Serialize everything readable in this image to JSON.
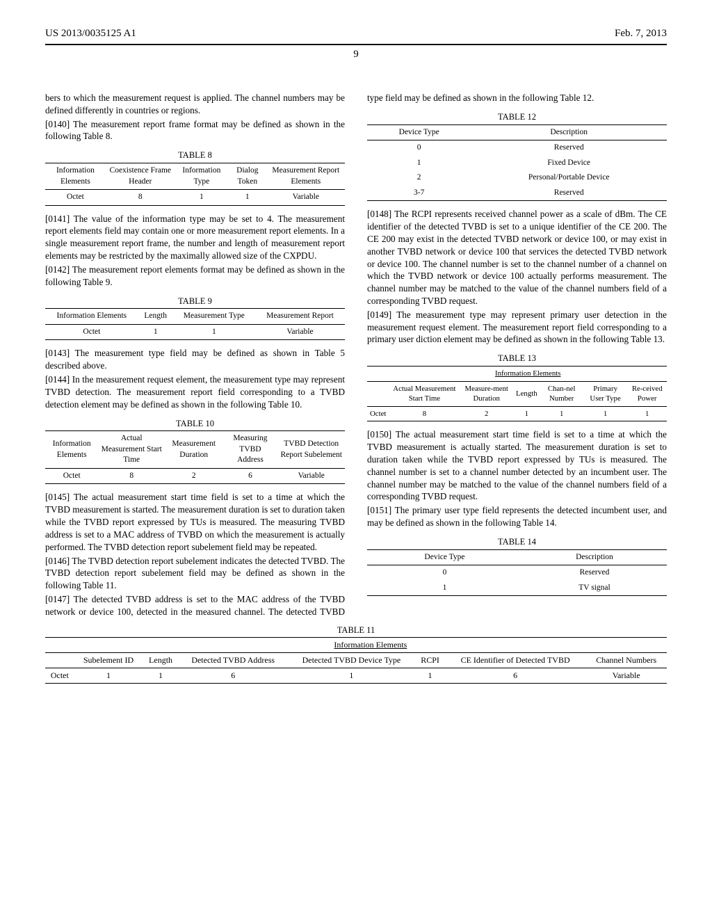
{
  "header": {
    "pub_number": "US 2013/0035125 A1",
    "date": "Feb. 7, 2013",
    "page_number": "9"
  },
  "paras": {
    "p0139_cont": "bers to which the measurement request is applied. The channel numbers may be defined differently in countries or regions.",
    "p0140_num": "[0140]",
    "p0140": "  The measurement report frame format may be defined as shown in the following Table 8.",
    "p0141_num": "[0141]",
    "p0141": "  The value of the information type may be set to 4. The measurement report elements field may contain one or more measurement report elements. In a single measurement report frame, the number and length of measurement report elements may be restricted by the maximally allowed size of the CXPDU.",
    "p0142_num": "[0142]",
    "p0142": "  The measurement report elements format may be defined as shown in the following Table 9.",
    "p0143_num": "[0143]",
    "p0143": "  The measurement type field may be defined as shown in Table 5 described above.",
    "p0144_num": "[0144]",
    "p0144": "  In the measurement request element, the measurement type may represent TVBD detection. The measurement report field corresponding to a TVBD detection element may be defined as shown in the following Table 10.",
    "p0145_num": "[0145]",
    "p0145": "  The actual measurement start time field is set to a time at which the TVBD measurement is started. The measurement duration is set to duration taken while the TVBD report expressed by TUs is measured. The measuring TVBD address is set to a MAC address of TVBD on which the measurement is actually performed. The TVBD detection report subelement field may be repeated.",
    "p0146_num": "[0146]",
    "p0146": "  The TVBD detection report subelement indicates the detected TVBD. The TVBD detection report subelement field may be defined as shown in the following Table 11.",
    "p0147_num": "[0147]",
    "p0147": "  The detected TVBD address is set to the MAC address of the TVBD network or device 100, detected in the measured channel. The detected TVBD type field may be defined as shown in the following Table 12.",
    "p0148_num": "[0148]",
    "p0148": "  The RCPI represents received channel power as a scale of dBm. The CE identifier of the detected TVBD is set to a unique identifier of the CE 200. The CE 200 may exist in the detected TVBD network or device 100, or may exist in another TVBD network or device 100 that services the detected TVBD network or device 100. The channel number is set to the channel number of a channel on which the TVBD network or device 100 actually performs measurement. The channel number may be matched to the value of the channel numbers field of a corresponding TVBD request.",
    "p0149_num": "[0149]",
    "p0149": "  The measurement type may represent primary user detection in the measurement request element. The measurement report field corresponding to a primary user diction element may be defined as shown in the following Table 13.",
    "p0150_num": "[0150]",
    "p0150": "  The actual measurement start time field is set to a time at which the TVBD measurement is actually started. The measurement duration is set to duration taken while the TVBD report expressed by TUs is measured. The channel number is set to a channel number detected by an incumbent user. The channel number may be matched to the value of the channel numbers field of a corresponding TVBD request.",
    "p0151_num": "[0151]",
    "p0151": "  The primary user type field represents the detected incumbent user, and may be defined as shown in the following Table 14."
  },
  "tables": {
    "t8": {
      "caption": "TABLE 8",
      "cols": [
        "Information Elements",
        "Coexistence Frame Header",
        "Information Type",
        "Dialog Token",
        "Measurement Report Elements"
      ],
      "row_label": "Octet",
      "row": [
        "8",
        "1",
        "1",
        "Variable"
      ]
    },
    "t9": {
      "caption": "TABLE 9",
      "cols": [
        "Information Elements",
        "Length",
        "Measurement Type",
        "Measurement Report"
      ],
      "row_label": "Octet",
      "row": [
        "1",
        "1",
        "Variable"
      ]
    },
    "t10": {
      "caption": "TABLE 10",
      "cols": [
        "Information Elements",
        "Actual Measurement Start Time",
        "Measurement Duration",
        "Measuring TVBD Address",
        "TVBD Detection Report Subelement"
      ],
      "row_label": "Octet",
      "row": [
        "8",
        "2",
        "6",
        "Variable"
      ]
    },
    "t11": {
      "caption": "TABLE 11",
      "ie_header": "Information Elements",
      "cols": [
        "Subelement ID",
        "Length",
        "Detected TVBD Address",
        "Detected TVBD Device Type",
        "RCPI",
        "CE Identifier of Detected TVBD",
        "Channel Numbers"
      ],
      "row_label": "Octet",
      "row": [
        "1",
        "1",
        "6",
        "1",
        "1",
        "6",
        "Variable"
      ]
    },
    "t12": {
      "caption": "TABLE 12",
      "cols": [
        "Device Type",
        "Description"
      ],
      "rows": [
        [
          "0",
          "Reserved"
        ],
        [
          "1",
          "Fixed Device"
        ],
        [
          "2",
          "Personal/Portable Device"
        ],
        [
          "3-7",
          "Reserved"
        ]
      ]
    },
    "t13": {
      "caption": "TABLE 13",
      "ie_header": "Information Elements",
      "cols": [
        "Actual Measurement Start Time",
        "Measure-ment Duration",
        "Length",
        "Chan-nel Number",
        "Primary User Type",
        "Re-ceived Power"
      ],
      "row_label": "Octet",
      "row": [
        "8",
        "2",
        "1",
        "1",
        "1",
        "1"
      ]
    },
    "t14": {
      "caption": "TABLE 14",
      "cols": [
        "Device Type",
        "Description"
      ],
      "rows": [
        [
          "0",
          "Reserved"
        ],
        [
          "1",
          "TV signal"
        ]
      ]
    }
  }
}
